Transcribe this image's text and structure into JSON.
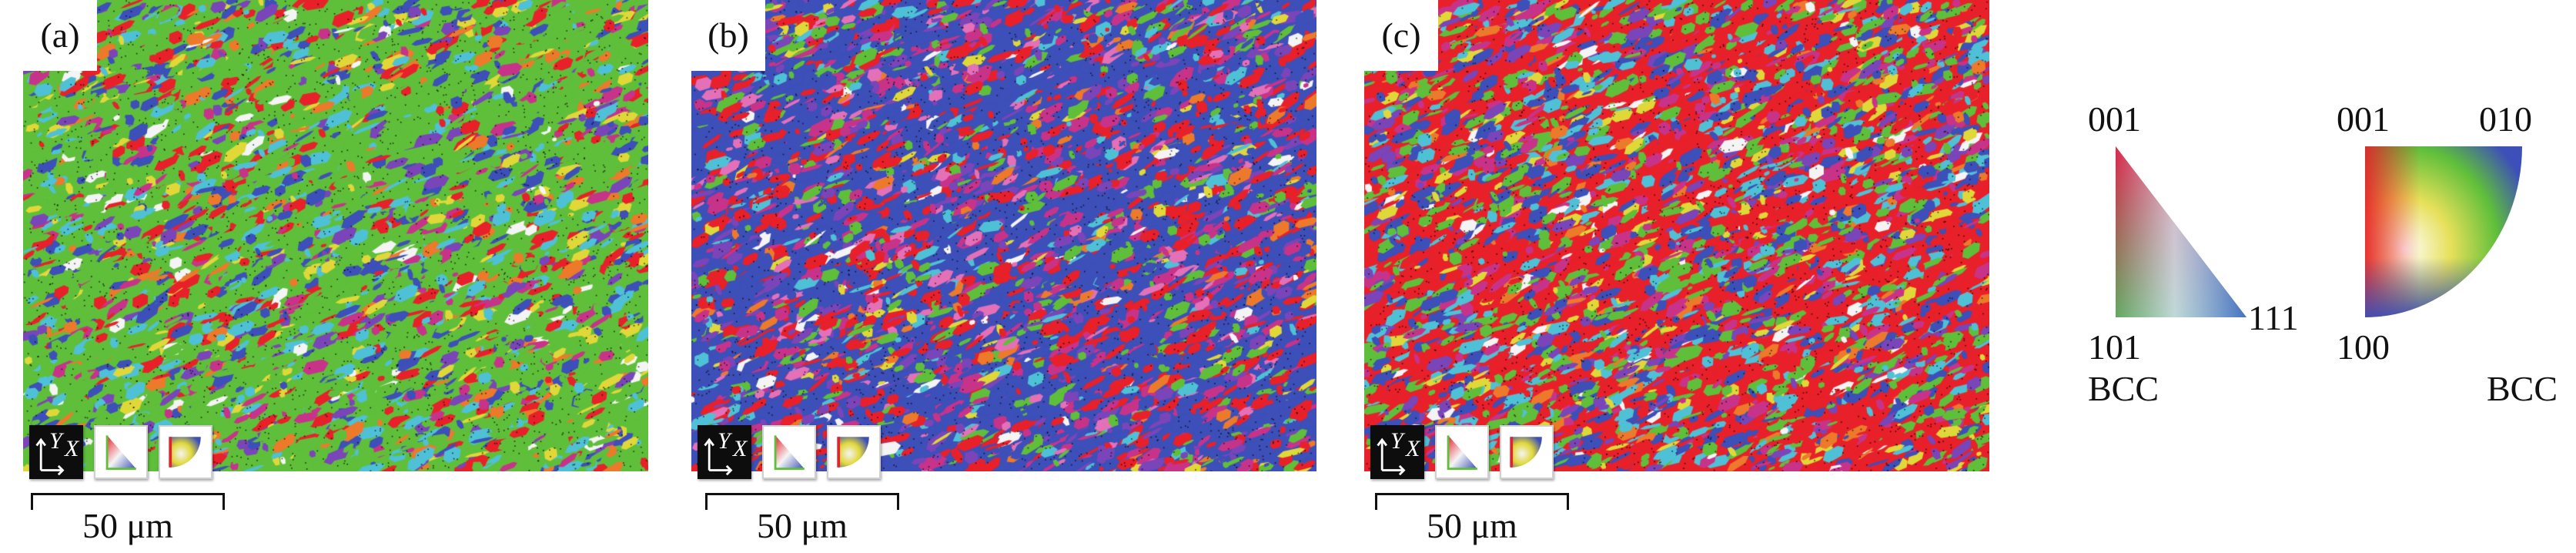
{
  "panels": [
    {
      "label": "(a)",
      "dominant": "green",
      "seed": 11
    },
    {
      "label": "(b)",
      "dominant": "blue-red",
      "seed": 23
    },
    {
      "label": "(c)",
      "dominant": "mixed",
      "seed": 37
    }
  ],
  "orientation_colors": {
    "red": "#e8202a",
    "green": "#5fbf3a",
    "blue": "#3d4fb8",
    "cyan": "#4fc1d6",
    "magenta": "#c8338a",
    "yellow": "#e0d838",
    "orange": "#ec7a2a",
    "purple": "#7a45b8",
    "pink": "#e470b8",
    "white": "#f4f4f4"
  },
  "map_icons": [
    "axes-icon",
    "triangle-key-icon",
    "quarter-circle-key-icon"
  ],
  "axes_icon": {
    "y": "Y",
    "x": "X"
  },
  "scale_bar": {
    "label": "50 μm"
  },
  "legend": {
    "triangle": {
      "top": "001",
      "left": "101",
      "right": "111",
      "structure": "BCC"
    },
    "quarter": {
      "top_left": "001",
      "top_right": "010",
      "bottom": "100",
      "structure": "BCC"
    }
  }
}
